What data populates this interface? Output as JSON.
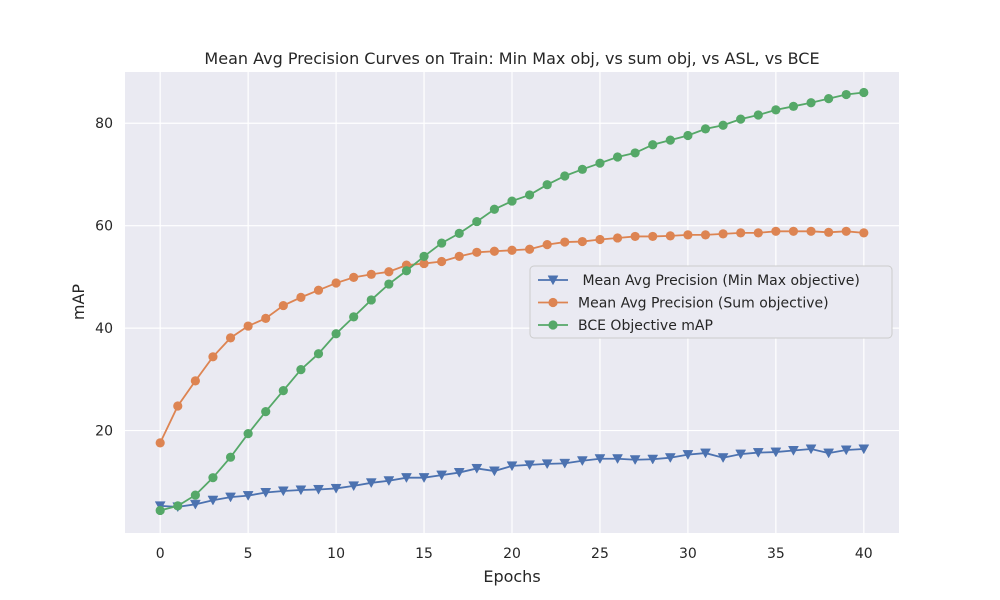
{
  "chart_data": {
    "type": "line",
    "title": "Mean Avg Precision Curves on Train: Min Max obj, vs sum obj, vs ASL, vs BCE",
    "xlabel": "Epochs",
    "ylabel": "mAP",
    "xlim": [
      -2,
      42
    ],
    "ylim": [
      0,
      90
    ],
    "xticks": [
      0,
      5,
      10,
      15,
      20,
      25,
      30,
      35,
      40
    ],
    "yticks": [
      20,
      40,
      60,
      80
    ],
    "grid": true,
    "legend_position": "center-right",
    "x": [
      0,
      1,
      2,
      3,
      4,
      5,
      6,
      7,
      8,
      9,
      10,
      11,
      12,
      13,
      14,
      15,
      16,
      17,
      18,
      19,
      20,
      21,
      22,
      23,
      24,
      25,
      26,
      27,
      28,
      29,
      30,
      31,
      32,
      33,
      34,
      35,
      36,
      37,
      38,
      39,
      40
    ],
    "series": [
      {
        "name": " Mean Avg Precision (Min Max objective)",
        "color": "#4c72b0",
        "marker": "triangle-down",
        "values": [
          5.3,
          5.1,
          5.6,
          6.4,
          7.0,
          7.3,
          7.9,
          8.2,
          8.4,
          8.5,
          8.7,
          9.2,
          9.8,
          10.2,
          10.8,
          10.8,
          11.3,
          11.8,
          12.6,
          12.1,
          13.1,
          13.3,
          13.5,
          13.6,
          14.1,
          14.5,
          14.5,
          14.3,
          14.4,
          14.7,
          15.3,
          15.6,
          14.7,
          15.4,
          15.7,
          15.8,
          16.1,
          16.4,
          15.6,
          16.2,
          16.4
        ]
      },
      {
        "name": "Mean Avg Precision (Sum objective)",
        "color": "#dd8452",
        "marker": "circle",
        "values": [
          17.6,
          24.8,
          29.7,
          34.4,
          38.1,
          40.4,
          41.9,
          44.4,
          46.0,
          47.4,
          48.8,
          49.9,
          50.5,
          51.0,
          52.3,
          52.6,
          53.0,
          54.0,
          54.8,
          55.0,
          55.2,
          55.4,
          56.3,
          56.8,
          56.9,
          57.3,
          57.6,
          57.9,
          57.9,
          58.0,
          58.2,
          58.2,
          58.4,
          58.6,
          58.6,
          58.9,
          58.9,
          58.9,
          58.7,
          58.9,
          58.6
        ]
      },
      {
        "name": "BCE Objective mAP",
        "color": "#55a868",
        "marker": "circle",
        "values": [
          4.4,
          5.3,
          7.4,
          10.8,
          14.8,
          19.4,
          23.7,
          27.8,
          31.9,
          35.0,
          38.9,
          42.2,
          45.5,
          48.6,
          51.2,
          54.0,
          56.6,
          58.5,
          60.8,
          63.2,
          64.8,
          66.0,
          68.0,
          69.7,
          71.0,
          72.2,
          73.4,
          74.2,
          75.8,
          76.7,
          77.6,
          78.9,
          79.6,
          80.8,
          81.6,
          82.6,
          83.3,
          84.0,
          84.8,
          85.6,
          86.0
        ]
      }
    ]
  }
}
